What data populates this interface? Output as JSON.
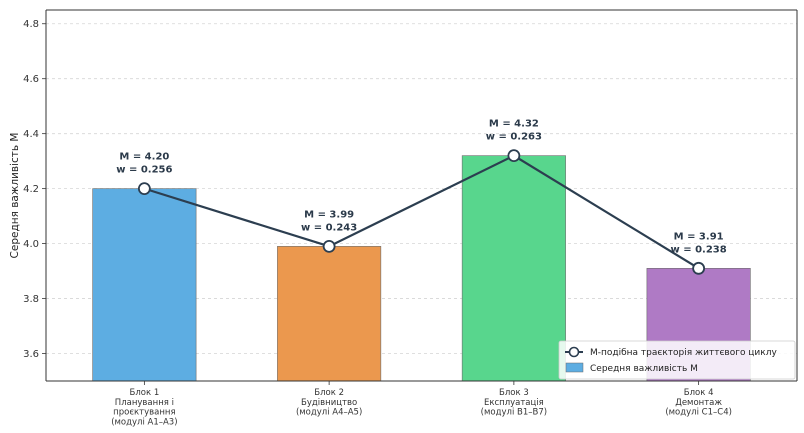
{
  "chart_data": {
    "type": "bar",
    "ylabel": "Середня важливість M",
    "xlabel": "",
    "ylim": [
      3.5,
      4.85
    ],
    "yticks": [
      "3.6",
      "3.8",
      "4.0",
      "4.2",
      "4.4",
      "4.6",
      "4.8"
    ],
    "grid": true,
    "categories": [
      [
        "Блок 1",
        "Планування і",
        "проєктування",
        "(модулі А1–А3)"
      ],
      [
        "Блок 2",
        "Будівництво",
        "(модулі А4–А5)"
      ],
      [
        "Блок 3",
        "Експлуатація",
        "(модулі В1–В7)"
      ],
      [
        "Блок 4",
        "Демонтаж",
        "(модулі С1–С4)"
      ]
    ],
    "series": [
      {
        "name": "Середня важливість M",
        "kind": "bar",
        "values": [
          4.2,
          3.99,
          4.32,
          3.91
        ],
        "colors": [
          "#5dade2",
          "#eb984e",
          "#58d68d",
          "#af7ac5"
        ]
      },
      {
        "name": "M-подібна траєкторія життєвого циклу",
        "kind": "line",
        "values": [
          4.2,
          3.99,
          4.32,
          3.91
        ],
        "color": "#2c3e50"
      }
    ],
    "annotations": [
      [
        "M = 4.20",
        "w = 0.256"
      ],
      [
        "M = 3.99",
        "w = 0.243"
      ],
      [
        "M = 4.32",
        "w = 0.263"
      ],
      [
        "M = 3.91",
        "w = 0.238"
      ]
    ],
    "legend_position": "bottom-right"
  }
}
